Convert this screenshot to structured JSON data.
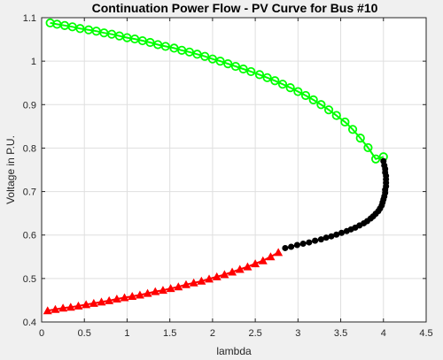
{
  "chart_data": {
    "type": "line",
    "title": "Continuation Power Flow - PV Curve for Bus #10",
    "xlabel": "lambda",
    "ylabel": "Voltage in P.U.",
    "xlim": [
      0,
      4.5
    ],
    "ylim": [
      0.4,
      1.1
    ],
    "xticks": [
      "0",
      "0.5",
      "1",
      "1.5",
      "2",
      "2.5",
      "3",
      "3.5",
      "4",
      "4.5"
    ],
    "yticks": [
      "0.4",
      "0.5",
      "0.6",
      "0.7",
      "0.8",
      "0.9",
      "1",
      "1.1"
    ],
    "grid": true,
    "series": [
      {
        "name": "upper",
        "color": "#00ff00",
        "marker": "circle",
        "x": [
          0.1,
          0.18,
          0.27,
          0.36,
          0.45,
          0.55,
          0.64,
          0.73,
          0.82,
          0.91,
          1.0,
          1.09,
          1.18,
          1.27,
          1.36,
          1.45,
          1.55,
          1.64,
          1.73,
          1.82,
          1.91,
          2.0,
          2.09,
          2.18,
          2.27,
          2.36,
          2.45,
          2.55,
          2.64,
          2.73,
          2.82,
          2.91,
          3.0,
          3.09,
          3.18,
          3.27,
          3.36,
          3.45,
          3.55,
          3.64,
          3.73,
          3.82,
          3.91,
          4.0
        ],
        "y": [
          1.088,
          1.085,
          1.082,
          1.079,
          1.075,
          1.072,
          1.069,
          1.065,
          1.062,
          1.058,
          1.054,
          1.051,
          1.047,
          1.043,
          1.038,
          1.034,
          1.03,
          1.025,
          1.021,
          1.016,
          1.011,
          1.005,
          1.0,
          0.994,
          0.988,
          0.982,
          0.976,
          0.969,
          0.962,
          0.955,
          0.947,
          0.939,
          0.93,
          0.921,
          0.911,
          0.9,
          0.888,
          0.875,
          0.86,
          0.843,
          0.823,
          0.801,
          0.775,
          0.78
        ]
      },
      {
        "name": "nose",
        "color": "#000000",
        "marker": "circle",
        "x": [
          2.85,
          2.92,
          2.99,
          3.06,
          3.13,
          3.2,
          3.27,
          3.33,
          3.39,
          3.45,
          3.51,
          3.57,
          3.62,
          3.67,
          3.72,
          3.77,
          3.81,
          3.85,
          3.88,
          3.91,
          3.94,
          3.96,
          3.98,
          3.99,
          4.0,
          4.01,
          4.02,
          4.02,
          4.03,
          4.03,
          4.03,
          4.03,
          4.02,
          4.02,
          4.01,
          4.0
        ],
        "y": [
          0.57,
          0.573,
          0.577,
          0.58,
          0.583,
          0.587,
          0.59,
          0.594,
          0.597,
          0.601,
          0.605,
          0.609,
          0.613,
          0.617,
          0.622,
          0.627,
          0.632,
          0.638,
          0.643,
          0.649,
          0.655,
          0.661,
          0.668,
          0.675,
          0.682,
          0.689,
          0.697,
          0.704,
          0.712,
          0.72,
          0.728,
          0.736,
          0.744,
          0.752,
          0.76,
          0.77
        ]
      },
      {
        "name": "lower",
        "color": "#ff0000",
        "marker": "triangle",
        "x": [
          0.07,
          0.16,
          0.25,
          0.34,
          0.43,
          0.52,
          0.61,
          0.7,
          0.79,
          0.88,
          0.97,
          1.06,
          1.15,
          1.24,
          1.33,
          1.42,
          1.51,
          1.6,
          1.69,
          1.78,
          1.87,
          1.96,
          2.05,
          2.14,
          2.23,
          2.32,
          2.41,
          2.5,
          2.59,
          2.68,
          2.77
        ],
        "y": [
          0.426,
          0.429,
          0.432,
          0.434,
          0.437,
          0.44,
          0.443,
          0.446,
          0.449,
          0.453,
          0.456,
          0.459,
          0.462,
          0.466,
          0.47,
          0.473,
          0.477,
          0.481,
          0.486,
          0.49,
          0.494,
          0.499,
          0.504,
          0.509,
          0.515,
          0.521,
          0.527,
          0.534,
          0.541,
          0.55,
          0.56
        ]
      }
    ]
  }
}
